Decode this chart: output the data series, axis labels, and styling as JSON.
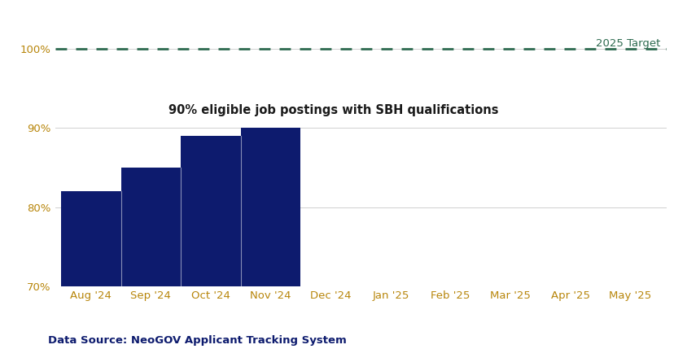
{
  "months": [
    "Aug '24",
    "Sep '24",
    "Oct '24",
    "Nov '24",
    "Dec '24",
    "Jan '25",
    "Feb '25",
    "Mar '25",
    "Apr '25",
    "May '25"
  ],
  "bar_months_indices": [
    0,
    1,
    2,
    3
  ],
  "bar_values": [
    82,
    85,
    89,
    90
  ],
  "bar_color": "#0D1B6E",
  "target_value": 100,
  "target_label": "2025 Target",
  "target_color": "#2D6A4F",
  "ylim": [
    70,
    104
  ],
  "yticks": [
    70,
    80,
    90,
    100
  ],
  "ytick_labels": [
    "70%",
    "80%",
    "90%",
    "100%"
  ],
  "annotation_text": "90% eligible job postings with SBH qualifications",
  "data_source": "Data Source: NeoGOV Applicant Tracking System",
  "background_color": "#FFFFFF",
  "grid_color": "#D0D0D0",
  "tick_label_color": "#B8860B",
  "annotation_fontsize": 10.5,
  "tick_fontsize": 9.5
}
